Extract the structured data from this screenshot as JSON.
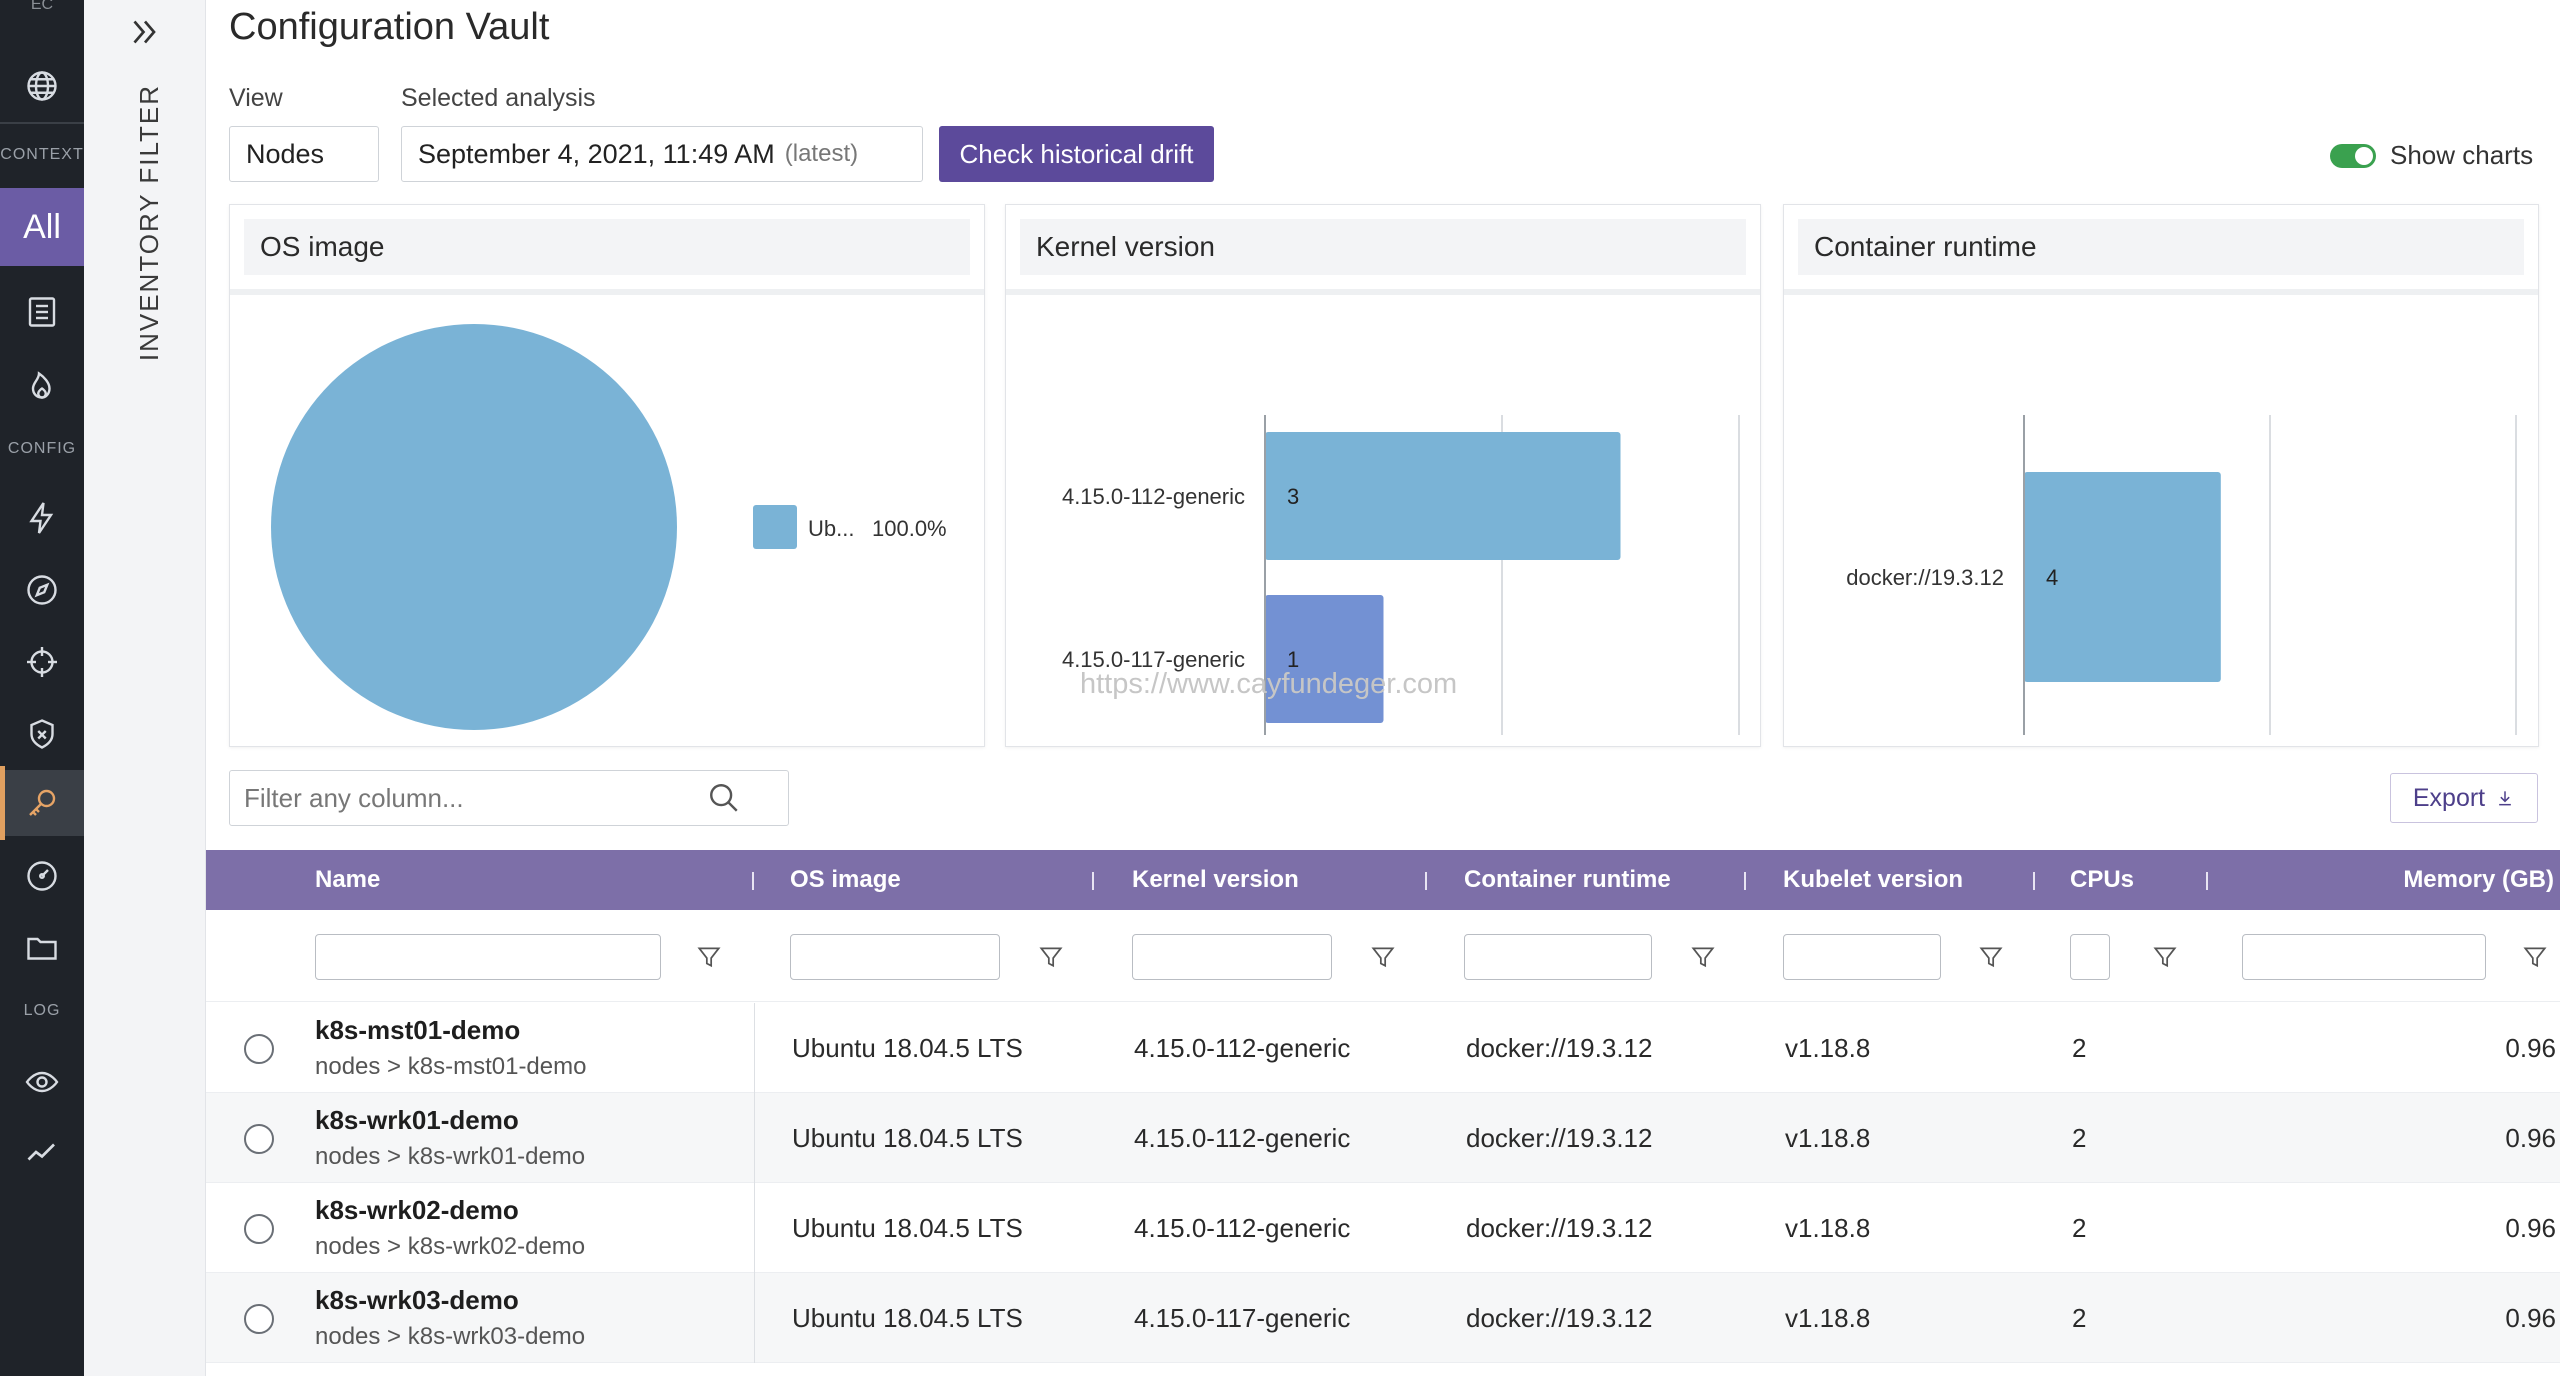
{
  "nav": {
    "top_label": "EC",
    "section_context": "CONTEXT",
    "all_label": "All",
    "section_config": "CONFIG",
    "section_log": "LOG"
  },
  "filter_panel": {
    "label": "INVENTORY FILTER"
  },
  "page": {
    "title": "Configuration Vault"
  },
  "controls": {
    "view_label": "View",
    "view_value": "Nodes",
    "analysis_label": "Selected analysis",
    "analysis_value": "September 4, 2021, 11:49 AM",
    "analysis_tag": "(latest)",
    "drift_button": "Check historical drift",
    "show_charts_label": "Show charts",
    "show_charts_on": true
  },
  "chart_data": [
    {
      "type": "pie",
      "title": "OS image",
      "labels": [
        "Ub..."
      ],
      "values": [
        100.0
      ],
      "legend_text": [
        "100.0%"
      ],
      "colors": [
        "#7ab3d6"
      ]
    },
    {
      "type": "bar",
      "orientation": "horizontal",
      "title": "Kernel version",
      "categories": [
        "4.15.0-112-generic",
        "4.15.0-117-generic"
      ],
      "values": [
        3,
        1
      ],
      "colors": [
        "#7ab3d6",
        "#7391d3"
      ],
      "xlim": [
        0,
        4
      ],
      "xticks": [
        "0",
        "2",
        "4"
      ]
    },
    {
      "type": "bar",
      "orientation": "horizontal",
      "title": "Container runtime",
      "categories": [
        "docker://19.3.12"
      ],
      "values": [
        4
      ],
      "colors": [
        "#7ab3d6"
      ],
      "xlim": [
        0,
        10
      ],
      "xticks": [
        "0",
        "5",
        "10"
      ]
    }
  ],
  "watermark": "https://www.cayfundeger.com",
  "table_tools": {
    "filter_placeholder": "Filter any column...",
    "export_label": "Export"
  },
  "table": {
    "columns": [
      "Name",
      "OS image",
      "Kernel version",
      "Container runtime",
      "Kubelet version",
      "CPUs",
      "Memory (GB)"
    ],
    "rows": [
      {
        "name": "k8s-mst01-demo",
        "path": "nodes > k8s-mst01-demo",
        "os": "Ubuntu 18.04.5 LTS",
        "kernel": "4.15.0-112-generic",
        "runtime": "docker://19.3.12",
        "kubelet": "v1.18.8",
        "cpus": "2",
        "memory": "0.96"
      },
      {
        "name": "k8s-wrk01-demo",
        "path": "nodes > k8s-wrk01-demo",
        "os": "Ubuntu 18.04.5 LTS",
        "kernel": "4.15.0-112-generic",
        "runtime": "docker://19.3.12",
        "kubelet": "v1.18.8",
        "cpus": "2",
        "memory": "0.96"
      },
      {
        "name": "k8s-wrk02-demo",
        "path": "nodes > k8s-wrk02-demo",
        "os": "Ubuntu 18.04.5 LTS",
        "kernel": "4.15.0-112-generic",
        "runtime": "docker://19.3.12",
        "kubelet": "v1.18.8",
        "cpus": "2",
        "memory": "0.96"
      },
      {
        "name": "k8s-wrk03-demo",
        "path": "nodes > k8s-wrk03-demo",
        "os": "Ubuntu 18.04.5 LTS",
        "kernel": "4.15.0-117-generic",
        "runtime": "docker://19.3.12",
        "kubelet": "v1.18.8",
        "cpus": "2",
        "memory": "0.96"
      }
    ]
  }
}
